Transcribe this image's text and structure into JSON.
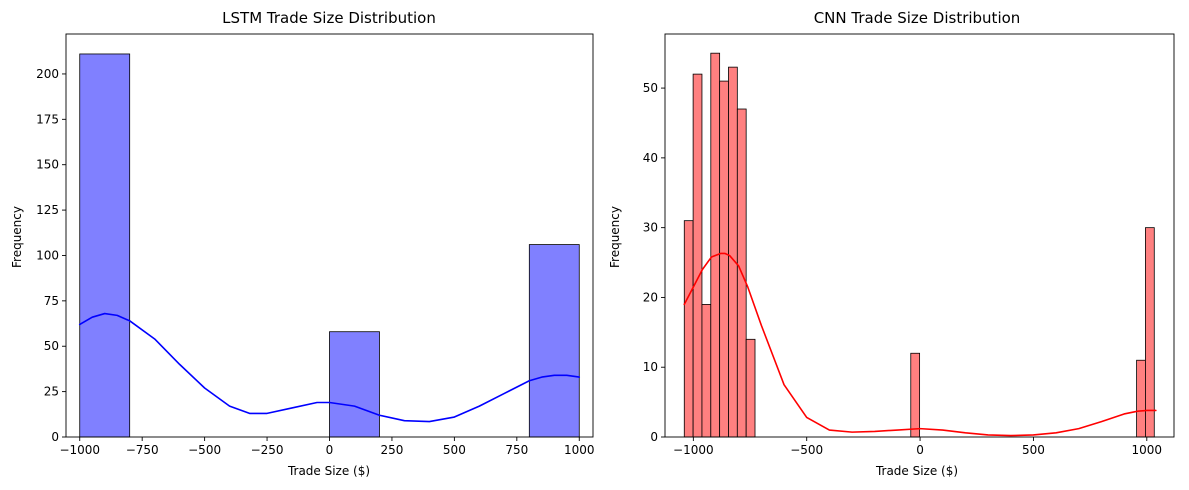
{
  "chart_data": [
    {
      "type": "bar",
      "title": "LSTM Trade Size Distribution",
      "xlabel": "Trade Size ($)",
      "ylabel": "Frequency",
      "xlim": [
        -1055,
        1055
      ],
      "ylim": [
        0,
        222
      ],
      "xticks": [
        -1000,
        -750,
        -500,
        -250,
        0,
        250,
        500,
        750,
        1000
      ],
      "xtick_labels": [
        "−1000",
        "−750",
        "−500",
        "−250",
        "0",
        "250",
        "500",
        "750",
        "1000"
      ],
      "yticks": [
        0,
        25,
        50,
        75,
        100,
        125,
        150,
        175,
        200
      ],
      "grid": false,
      "bins": [
        {
          "x0": -1000,
          "x1": -800,
          "count": 211
        },
        {
          "x0": 0,
          "x1": 200,
          "count": 58
        },
        {
          "x0": 800,
          "x1": 1000,
          "count": 106
        }
      ],
      "kde": {
        "x": [
          -1000,
          -950,
          -900,
          -850,
          -800,
          -700,
          -600,
          -500,
          -400,
          -320,
          -250,
          -150,
          -50,
          0,
          100,
          200,
          300,
          400,
          500,
          600,
          700,
          800,
          850,
          900,
          950,
          1000
        ],
        "y": [
          62,
          66,
          68,
          67,
          64,
          54,
          40,
          27,
          17,
          13,
          13,
          16,
          19,
          19,
          17,
          12,
          9,
          8.5,
          11,
          17,
          24,
          31,
          33,
          34,
          34,
          33
        ]
      },
      "bar_color": "#8080ff",
      "line_color": "#0000ff"
    },
    {
      "type": "bar",
      "title": "CNN Trade Size Distribution",
      "xlabel": "Trade Size ($)",
      "ylabel": "Frequency",
      "xlim": [
        -1125,
        1120
      ],
      "ylim": [
        0,
        57.75
      ],
      "xticks": [
        -1000,
        -500,
        0,
        500,
        1000
      ],
      "xtick_labels": [
        "−1000",
        "−500",
        "0",
        "500",
        "1000"
      ],
      "yticks": [
        0,
        10,
        20,
        30,
        40,
        50
      ],
      "grid": false,
      "bins": [
        {
          "x0": -1040,
          "x1": -1001,
          "count": 31
        },
        {
          "x0": -1001,
          "x1": -962,
          "count": 52
        },
        {
          "x0": -962,
          "x1": -923,
          "count": 19
        },
        {
          "x0": -923,
          "x1": -884,
          "count": 55
        },
        {
          "x0": -884,
          "x1": -845,
          "count": 51
        },
        {
          "x0": -845,
          "x1": -806,
          "count": 53
        },
        {
          "x0": -806,
          "x1": -767,
          "count": 47
        },
        {
          "x0": -767,
          "x1": -728,
          "count": 14
        },
        {
          "x0": -41,
          "x1": -2,
          "count": 12
        },
        {
          "x0": 955,
          "x1": 994,
          "count": 11
        },
        {
          "x0": 994,
          "x1": 1033,
          "count": 30
        }
      ],
      "kde": {
        "x": [
          -1040,
          -1000,
          -960,
          -920,
          -880,
          -860,
          -840,
          -800,
          -760,
          -700,
          -600,
          -500,
          -400,
          -300,
          -200,
          -100,
          0,
          100,
          200,
          300,
          400,
          500,
          600,
          700,
          800,
          900,
          960,
          1000,
          1040
        ],
        "y": [
          19,
          21.5,
          24,
          25.8,
          26.3,
          26.3,
          26,
          24.5,
          21.5,
          16,
          7.5,
          2.8,
          1,
          0.7,
          0.8,
          1,
          1.2,
          1,
          0.6,
          0.3,
          0.2,
          0.3,
          0.6,
          1.2,
          2.2,
          3.3,
          3.7,
          3.8,
          3.8
        ]
      },
      "bar_color": "#ff8080",
      "line_color": "#ff0000"
    }
  ]
}
